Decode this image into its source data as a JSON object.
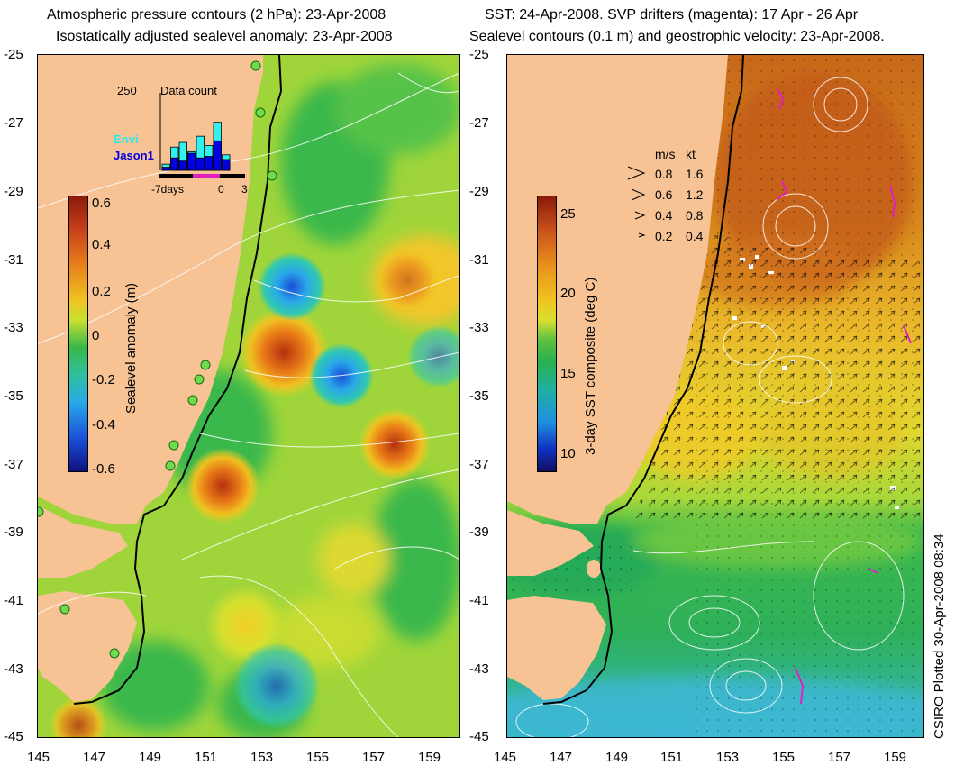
{
  "left_panel": {
    "title_line1": "Atmospheric pressure contours (2 hPa): 23-Apr-2008",
    "title_line2": "Isostatically adjusted sealevel anomaly: 23-Apr-2008",
    "colorbar": {
      "label": "Sealevel anomaly (m)",
      "ticks": [
        "0.6",
        "0.4",
        "0.2",
        "0",
        "-0.2",
        "-0.4",
        "-0.6"
      ]
    },
    "inset": {
      "title": "Data count",
      "ymax_label": "250",
      "series": [
        "Envi",
        "Jason1"
      ],
      "x_labels": [
        "-7days",
        "0",
        "3"
      ],
      "envi_values": [
        20,
        75,
        90,
        60,
        110,
        80,
        155,
        50
      ],
      "jason_values": [
        10,
        40,
        30,
        55,
        40,
        45,
        95,
        35
      ]
    }
  },
  "right_panel": {
    "title_line1": "SST: 24-Apr-2008. SVP drifters (magenta): 17 Apr - 26 Apr",
    "title_line2": "Sealevel contours (0.1 m) and geostrophic velocity: 23-Apr-2008.",
    "colorbar": {
      "label": "3-day SST composite (deg C)",
      "ticks": [
        "25",
        "20",
        "15",
        "10"
      ]
    },
    "velocity_legend": {
      "header_ms": "m/s",
      "header_kt": "kt",
      "rows": [
        {
          "ms": "0.8",
          "kt": "1.6"
        },
        {
          "ms": "0.6",
          "kt": "1.2"
        },
        {
          "ms": "0.4",
          "kt": "0.8"
        },
        {
          "ms": "0.2",
          "kt": "0.4"
        }
      ]
    }
  },
  "axes": {
    "lat_labels": [
      "-25",
      "-27",
      "-29",
      "-31",
      "-33",
      "-35",
      "-37",
      "-39",
      "-41",
      "-43",
      "-45"
    ],
    "lon_labels": [
      "145",
      "147",
      "149",
      "151",
      "153",
      "155",
      "157",
      "159"
    ]
  },
  "footer": {
    "plotted": "CSIRO Plotted 30-Apr-2008 08:34"
  }
}
